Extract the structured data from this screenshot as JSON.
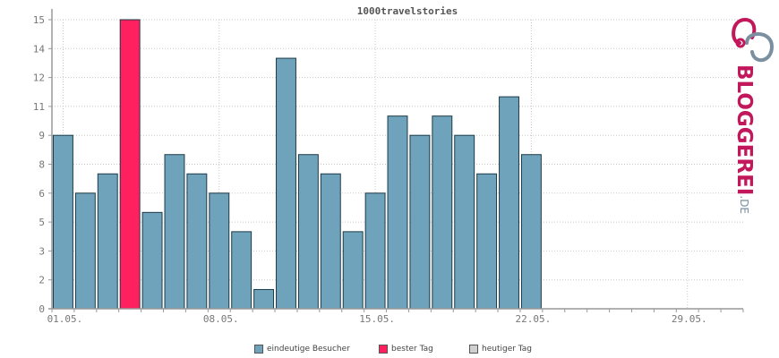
{
  "chart_data": {
    "type": "bar",
    "title": "1000travelstories",
    "x": [
      "01.05.",
      "02.05.",
      "03.05.",
      "04.05.",
      "05.05.",
      "06.05.",
      "07.05.",
      "08.05.",
      "09.05.",
      "10.05.",
      "11.05.",
      "12.05.",
      "13.05.",
      "14.05.",
      "15.05.",
      "16.05.",
      "17.05.",
      "18.05.",
      "19.05.",
      "20.05.",
      "21.05.",
      "22.05.",
      "23.05.",
      "24.05.",
      "25.05.",
      "26.05.",
      "27.05.",
      "28.05.",
      "29.05.",
      "30.05.",
      "31.05."
    ],
    "values": [
      9,
      6,
      7,
      15,
      5,
      8,
      7,
      6,
      4,
      1,
      13,
      8,
      7,
      4,
      6,
      10,
      9,
      10,
      9,
      7,
      11,
      8,
      null,
      null,
      null,
      null,
      null,
      null,
      null,
      null,
      null
    ],
    "best_index": 3,
    "ylim": [
      0,
      15
    ],
    "yticks": [
      "0",
      "2",
      "3",
      "5",
      "6",
      "8",
      "9",
      "11",
      "12",
      "14",
      "15"
    ],
    "ytick_values": [
      0,
      1.5,
      3,
      4.5,
      6,
      7.5,
      9,
      10.5,
      12,
      13.5,
      15
    ],
    "xtick_labels": [
      "01.05.",
      "08.05.",
      "15.05.",
      "22.05.",
      "29.05."
    ],
    "xtick_indices": [
      0,
      7,
      14,
      21,
      28
    ],
    "grid": true,
    "legend_placement": "bottom",
    "colors": {
      "bar": "#6fa3bb",
      "best": "#ff2060",
      "today": "#d0d0d0",
      "grid": "#c8c8c8",
      "axis": "#999999"
    }
  },
  "legend": {
    "visitors": "eindeutige Besucher",
    "best_day": "bester Tag",
    "today": "heutiger Tag"
  },
  "logo": {
    "name": "BLOGGEREI",
    "tld": ".DE"
  }
}
